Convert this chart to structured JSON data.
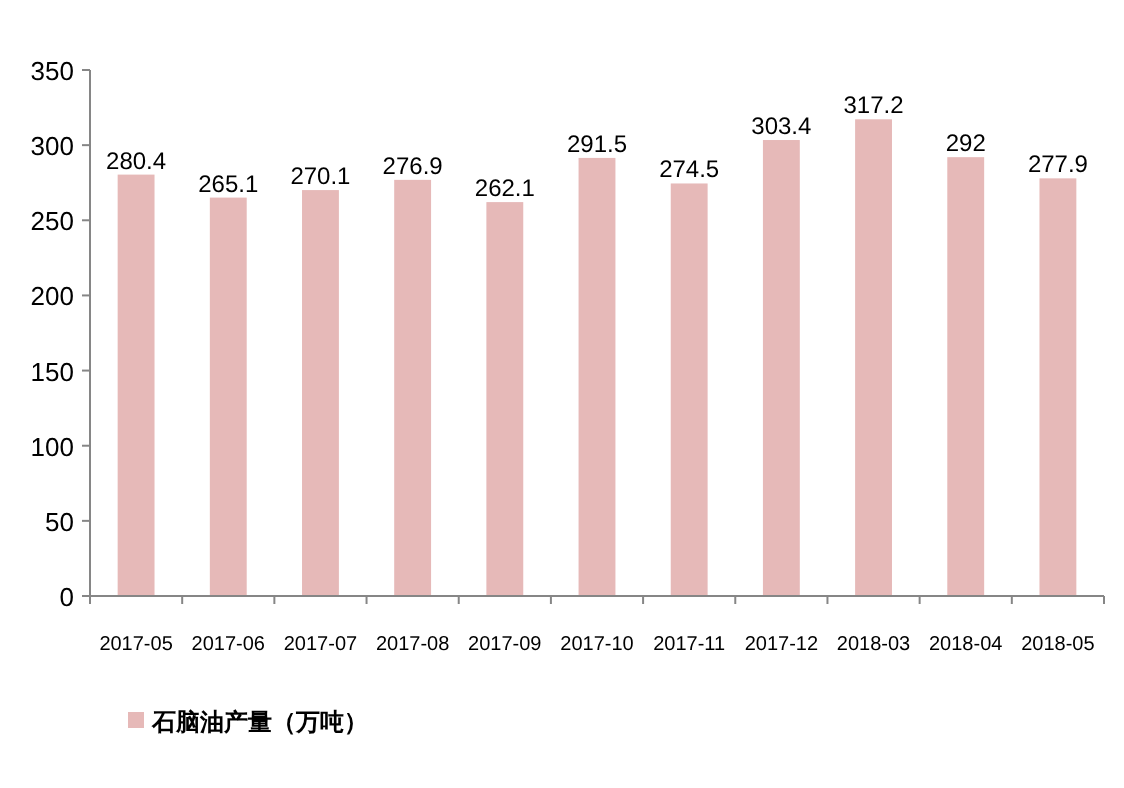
{
  "chart_data": {
    "type": "bar",
    "categories": [
      "2017-05",
      "2017-06",
      "2017-07",
      "2017-08",
      "2017-09",
      "2017-10",
      "2017-11",
      "2017-12",
      "2018-03",
      "2018-04",
      "2018-05"
    ],
    "series": [
      {
        "name": "石脑油产量（万吨）",
        "color": "#e6b9b8",
        "values": [
          280.4,
          265.1,
          270.1,
          276.9,
          262.1,
          291.5,
          274.5,
          303.4,
          317.2,
          292,
          277.9
        ]
      }
    ],
    "ylim": [
      0,
      350
    ],
    "yticks": [
      0,
      50,
      100,
      150,
      200,
      250,
      300,
      350
    ],
    "grid": false,
    "legend": "bottom left",
    "data_labels": true
  }
}
